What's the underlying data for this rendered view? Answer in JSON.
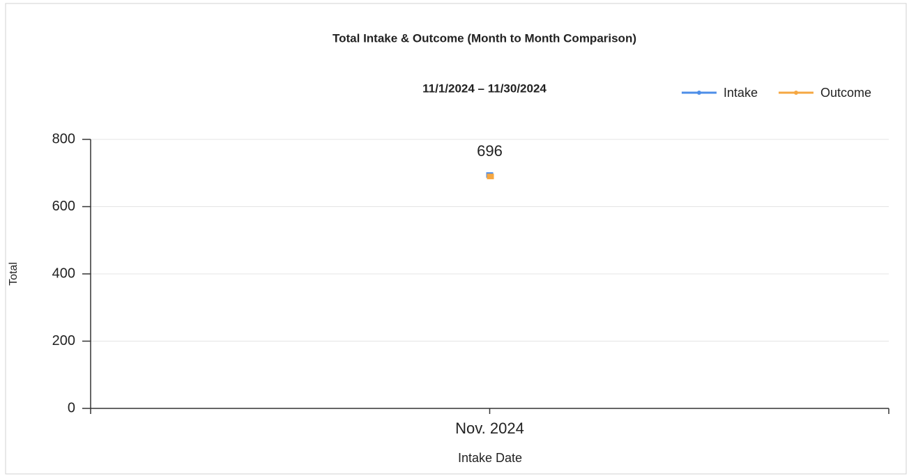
{
  "chart_data": {
    "type": "line",
    "title": "Total Intake & Outcome (Month to Month Comparison)",
    "subtitle": "11/1/2024 – 11/30/2024",
    "xlabel": "Intake Date",
    "ylabel": "Total",
    "categories": [
      "Nov. 2024"
    ],
    "series": [
      {
        "name": "Intake",
        "color": "#4d8ee8",
        "values": [
          696
        ],
        "labels": false
      },
      {
        "name": "Outcome",
        "color": "#f5a742",
        "values": [
          696
        ],
        "labels": true
      }
    ],
    "ylim": [
      0,
      800
    ],
    "yticks": [
      0,
      200,
      400,
      600,
      800
    ],
    "grid": true,
    "legend": "top-right"
  }
}
